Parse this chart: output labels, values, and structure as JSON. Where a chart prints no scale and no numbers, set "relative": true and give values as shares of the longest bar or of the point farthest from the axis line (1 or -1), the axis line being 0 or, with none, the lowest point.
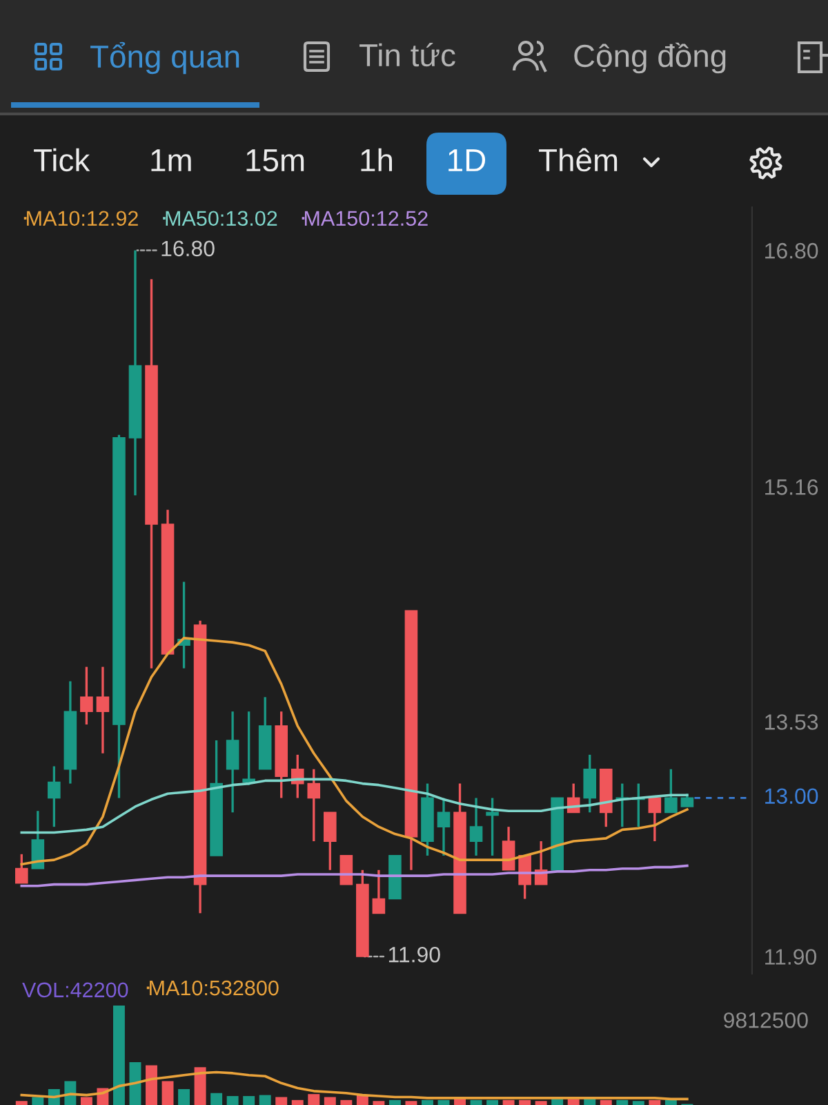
{
  "chart_data": [
    {
      "type": "candlestick",
      "categories": [
        null,
        null,
        null,
        null,
        null,
        null,
        null,
        null,
        null,
        null,
        null,
        null,
        null,
        null,
        null,
        null,
        null,
        null,
        null,
        null,
        null,
        null,
        null,
        null,
        null,
        null,
        null,
        null,
        null,
        null,
        null,
        null,
        null,
        null,
        null,
        null,
        null,
        null,
        null,
        null,
        null,
        null
      ],
      "ohlc": [
        [
          12.51,
          12.61,
          12.41,
          12.41
        ],
        [
          12.51,
          12.91,
          12.51,
          12.71
        ],
        [
          13.0,
          13.22,
          12.8,
          13.11
        ],
        [
          13.2,
          13.81,
          13.1,
          13.6
        ],
        [
          13.7,
          13.91,
          13.51,
          13.6
        ],
        [
          13.7,
          13.91,
          13.31,
          13.6
        ],
        [
          13.51,
          15.52,
          13.0,
          15.5
        ],
        [
          15.5,
          16.8,
          15.1,
          16.0
        ],
        [
          16.0,
          16.6,
          13.9,
          14.9
        ],
        [
          14.9,
          15.0,
          14.0,
          14.0
        ],
        [
          14.06,
          14.5,
          13.9,
          14.1
        ],
        [
          14.2,
          14.23,
          12.2,
          12.4
        ],
        [
          12.6,
          13.4,
          12.6,
          13.1
        ],
        [
          13.2,
          13.6,
          12.9,
          13.4
        ],
        [
          13.11,
          13.6,
          13.09,
          13.13
        ],
        [
          13.2,
          13.7,
          13.2,
          13.5
        ],
        [
          13.5,
          13.6,
          13.0,
          13.15
        ],
        [
          13.2,
          13.3,
          13.0,
          13.1
        ],
        [
          13.1,
          13.2,
          12.7,
          13.0
        ],
        [
          12.9,
          12.9,
          12.5,
          12.7
        ],
        [
          12.6,
          12.6,
          12.4,
          12.4
        ],
        [
          12.4,
          12.5,
          11.9,
          11.9
        ],
        [
          12.3,
          12.5,
          12.2,
          12.2
        ],
        [
          12.3,
          12.6,
          12.3,
          12.6
        ],
        [
          14.3,
          14.3,
          12.5,
          12.73
        ],
        [
          12.7,
          13.1,
          12.6,
          13.0
        ],
        [
          12.8,
          13.0,
          12.6,
          12.9
        ],
        [
          12.9,
          13.1,
          12.2,
          12.2
        ],
        [
          12.7,
          13.0,
          12.6,
          12.8
        ],
        [
          12.88,
          13.0,
          12.6,
          12.9
        ],
        [
          12.7,
          12.8,
          12.5,
          12.5
        ],
        [
          12.6,
          12.6,
          12.3,
          12.4
        ],
        [
          12.5,
          12.7,
          12.4,
          12.4
        ],
        [
          12.5,
          13.0,
          12.5,
          13.0
        ],
        [
          13.0,
          13.1,
          12.9,
          12.9
        ],
        [
          13.0,
          13.3,
          12.9,
          13.2
        ],
        [
          13.2,
          13.2,
          12.8,
          12.9
        ],
        [
          12.99,
          13.1,
          12.8,
          13.0
        ],
        [
          12.99,
          13.1,
          12.8,
          13.0
        ],
        [
          13.0,
          13.0,
          12.7,
          12.9
        ],
        [
          12.9,
          13.2,
          12.9,
          13.0
        ],
        [
          12.94,
          13.03,
          12.94,
          13.0
        ]
      ],
      "colors": [
        "#f0565a",
        "#1a9a86",
        "#1a9a86",
        "#1a9a86",
        "#f0565a",
        "#f0565a",
        "#1a9a86",
        "#1a9a86",
        "#f0565a",
        "#f0565a",
        "#1a9a86",
        "#f0565a",
        "#1a9a86",
        "#1a9a86",
        "#1a9a86",
        "#1a9a86",
        "#f0565a",
        "#f0565a",
        "#f0565a",
        "#f0565a",
        "#f0565a",
        "#f0565a",
        "#f0565a",
        "#1a9a86",
        "#f0565a",
        "#1a9a86",
        "#1a9a86",
        "#f0565a",
        "#1a9a86",
        "#1a9a86",
        "#f0565a",
        "#f0565a",
        "#f0565a",
        "#1a9a86",
        "#f0565a",
        "#1a9a86",
        "#f0565a",
        "#1a9a86",
        "#1a9a86",
        "#f0565a",
        "#1a9a86",
        "#1a9a86"
      ],
      "series": [
        {
          "type": "line",
          "name": "MA10:12.92",
          "color": "#e9a23b",
          "values": [
            12.54,
            12.56,
            12.57,
            12.61,
            12.68,
            12.87,
            13.22,
            13.6,
            13.84,
            14.0,
            14.11,
            14.1,
            14.09,
            14.08,
            14.06,
            14.02,
            13.79,
            13.5,
            13.31,
            13.15,
            12.98,
            12.87,
            12.8,
            12.75,
            12.72,
            12.66,
            12.62,
            12.57,
            12.57,
            12.57,
            12.57,
            12.6,
            12.63,
            12.67,
            12.7,
            12.71,
            12.72,
            12.78,
            12.79,
            12.81,
            12.87,
            12.92
          ]
        },
        {
          "type": "line",
          "name": "MA50:13.02",
          "color": "#7fd6cb",
          "values": [
            12.76,
            12.76,
            12.76,
            12.77,
            12.78,
            12.8,
            12.87,
            12.94,
            12.99,
            13.03,
            13.04,
            13.05,
            13.07,
            13.09,
            13.1,
            13.12,
            13.12,
            13.13,
            13.13,
            13.13,
            13.12,
            13.1,
            13.09,
            13.07,
            13.05,
            13.03,
            12.99,
            12.96,
            12.94,
            12.92,
            12.91,
            12.91,
            12.91,
            12.93,
            12.94,
            12.95,
            12.97,
            12.99,
            13.0,
            13.01,
            13.02,
            13.02
          ]
        },
        {
          "type": "line",
          "name": "MA150:12.52",
          "color": "#b88ee6",
          "values": [
            12.39,
            12.39,
            12.4,
            12.4,
            12.4,
            12.41,
            12.42,
            12.43,
            12.44,
            12.45,
            12.45,
            12.46,
            12.46,
            12.46,
            12.46,
            12.46,
            12.46,
            12.47,
            12.47,
            12.47,
            12.47,
            12.47,
            12.46,
            12.46,
            12.46,
            12.46,
            12.47,
            12.47,
            12.47,
            12.47,
            12.48,
            12.48,
            12.48,
            12.49,
            12.49,
            12.5,
            12.5,
            12.51,
            12.51,
            12.52,
            12.52,
            12.53
          ]
        }
      ],
      "ylim": [
        11.78,
        17.1
      ],
      "yticks": [
        {
          "value": 16.8,
          "label": "16.80"
        },
        15.16,
        13.53,
        {
          "value": 11.9,
          "label": "11.90"
        }
      ],
      "ref_lines": [
        {
          "axis": "y",
          "value": 13.0,
          "label": "13.00",
          "color": "#3b7fd9",
          "line_style": "dashed"
        }
      ],
      "annotations": [
        "Tổng quan",
        "Tin tức",
        "Cộng đồng",
        "Tick",
        "1m",
        "15m",
        "1h",
        "1D",
        "Thêm",
        "16.80",
        "11.90"
      ],
      "legend": "top left",
      "tick_labels": "y"
    },
    {
      "type": "bar",
      "relative": true,
      "categories": [
        null,
        null,
        null,
        null,
        null,
        null,
        null,
        null,
        null,
        null,
        null,
        null,
        null,
        null,
        null,
        null,
        null,
        null,
        null,
        null,
        null,
        null,
        null,
        null,
        null,
        null,
        null,
        null,
        null,
        null,
        null,
        null,
        null,
        null,
        null,
        null,
        null,
        null,
        null,
        null,
        null,
        null
      ],
      "series": [
        {
          "type": "bar",
          "colors": [
            "#f0565a",
            "#1a9a86",
            "#1a9a86",
            "#1a9a86",
            "#f0565a",
            "#f0565a",
            "#1a9a86",
            "#1a9a86",
            "#f0565a",
            "#f0565a",
            "#1a9a86",
            "#f0565a",
            "#1a9a86",
            "#1a9a86",
            "#1a9a86",
            "#1a9a86",
            "#f0565a",
            "#f0565a",
            "#f0565a",
            "#f0565a",
            "#f0565a",
            "#f0565a",
            "#f0565a",
            "#1a9a86",
            "#f0565a",
            "#1a9a86",
            "#1a9a86",
            "#f0565a",
            "#1a9a86",
            "#1a9a86",
            "#f0565a",
            "#f0565a",
            "#f0565a",
            "#1a9a86",
            "#f0565a",
            "#1a9a86",
            "#f0565a",
            "#1a9a86",
            "#1a9a86",
            "#f0565a",
            "#1a9a86",
            "#1a9a86"
          ],
          "values": [
            0.04,
            0.08,
            0.16,
            0.24,
            0.08,
            0.17,
            1.0,
            0.43,
            0.4,
            0.24,
            0.16,
            0.38,
            0.12,
            0.09,
            0.09,
            0.1,
            0.08,
            0.05,
            0.11,
            0.08,
            0.05,
            0.1,
            0.04,
            0.05,
            0.04,
            0.05,
            0.05,
            0.08,
            0.05,
            0.05,
            0.05,
            0.05,
            0.04,
            0.06,
            0.06,
            0.07,
            0.05,
            0.05,
            0.04,
            0.05,
            0.05,
            0.01
          ]
        },
        {
          "type": "line",
          "name": "MA10:532800",
          "color": "#e9a23b",
          "values": [
            0.1,
            0.09,
            0.08,
            0.11,
            0.1,
            0.12,
            0.19,
            0.22,
            0.26,
            0.28,
            0.3,
            0.32,
            0.33,
            0.32,
            0.3,
            0.29,
            0.22,
            0.17,
            0.14,
            0.13,
            0.12,
            0.1,
            0.09,
            0.08,
            0.08,
            0.07,
            0.07,
            0.07,
            0.07,
            0.07,
            0.07,
            0.07,
            0.07,
            0.07,
            0.07,
            0.07,
            0.07,
            0.07,
            0.07,
            0.07,
            0.06,
            0.06
          ]
        }
      ],
      "annotations": [
        "VOL:42200",
        "9812500"
      ],
      "legend": "top left",
      "tick_labels": false
    }
  ]
}
